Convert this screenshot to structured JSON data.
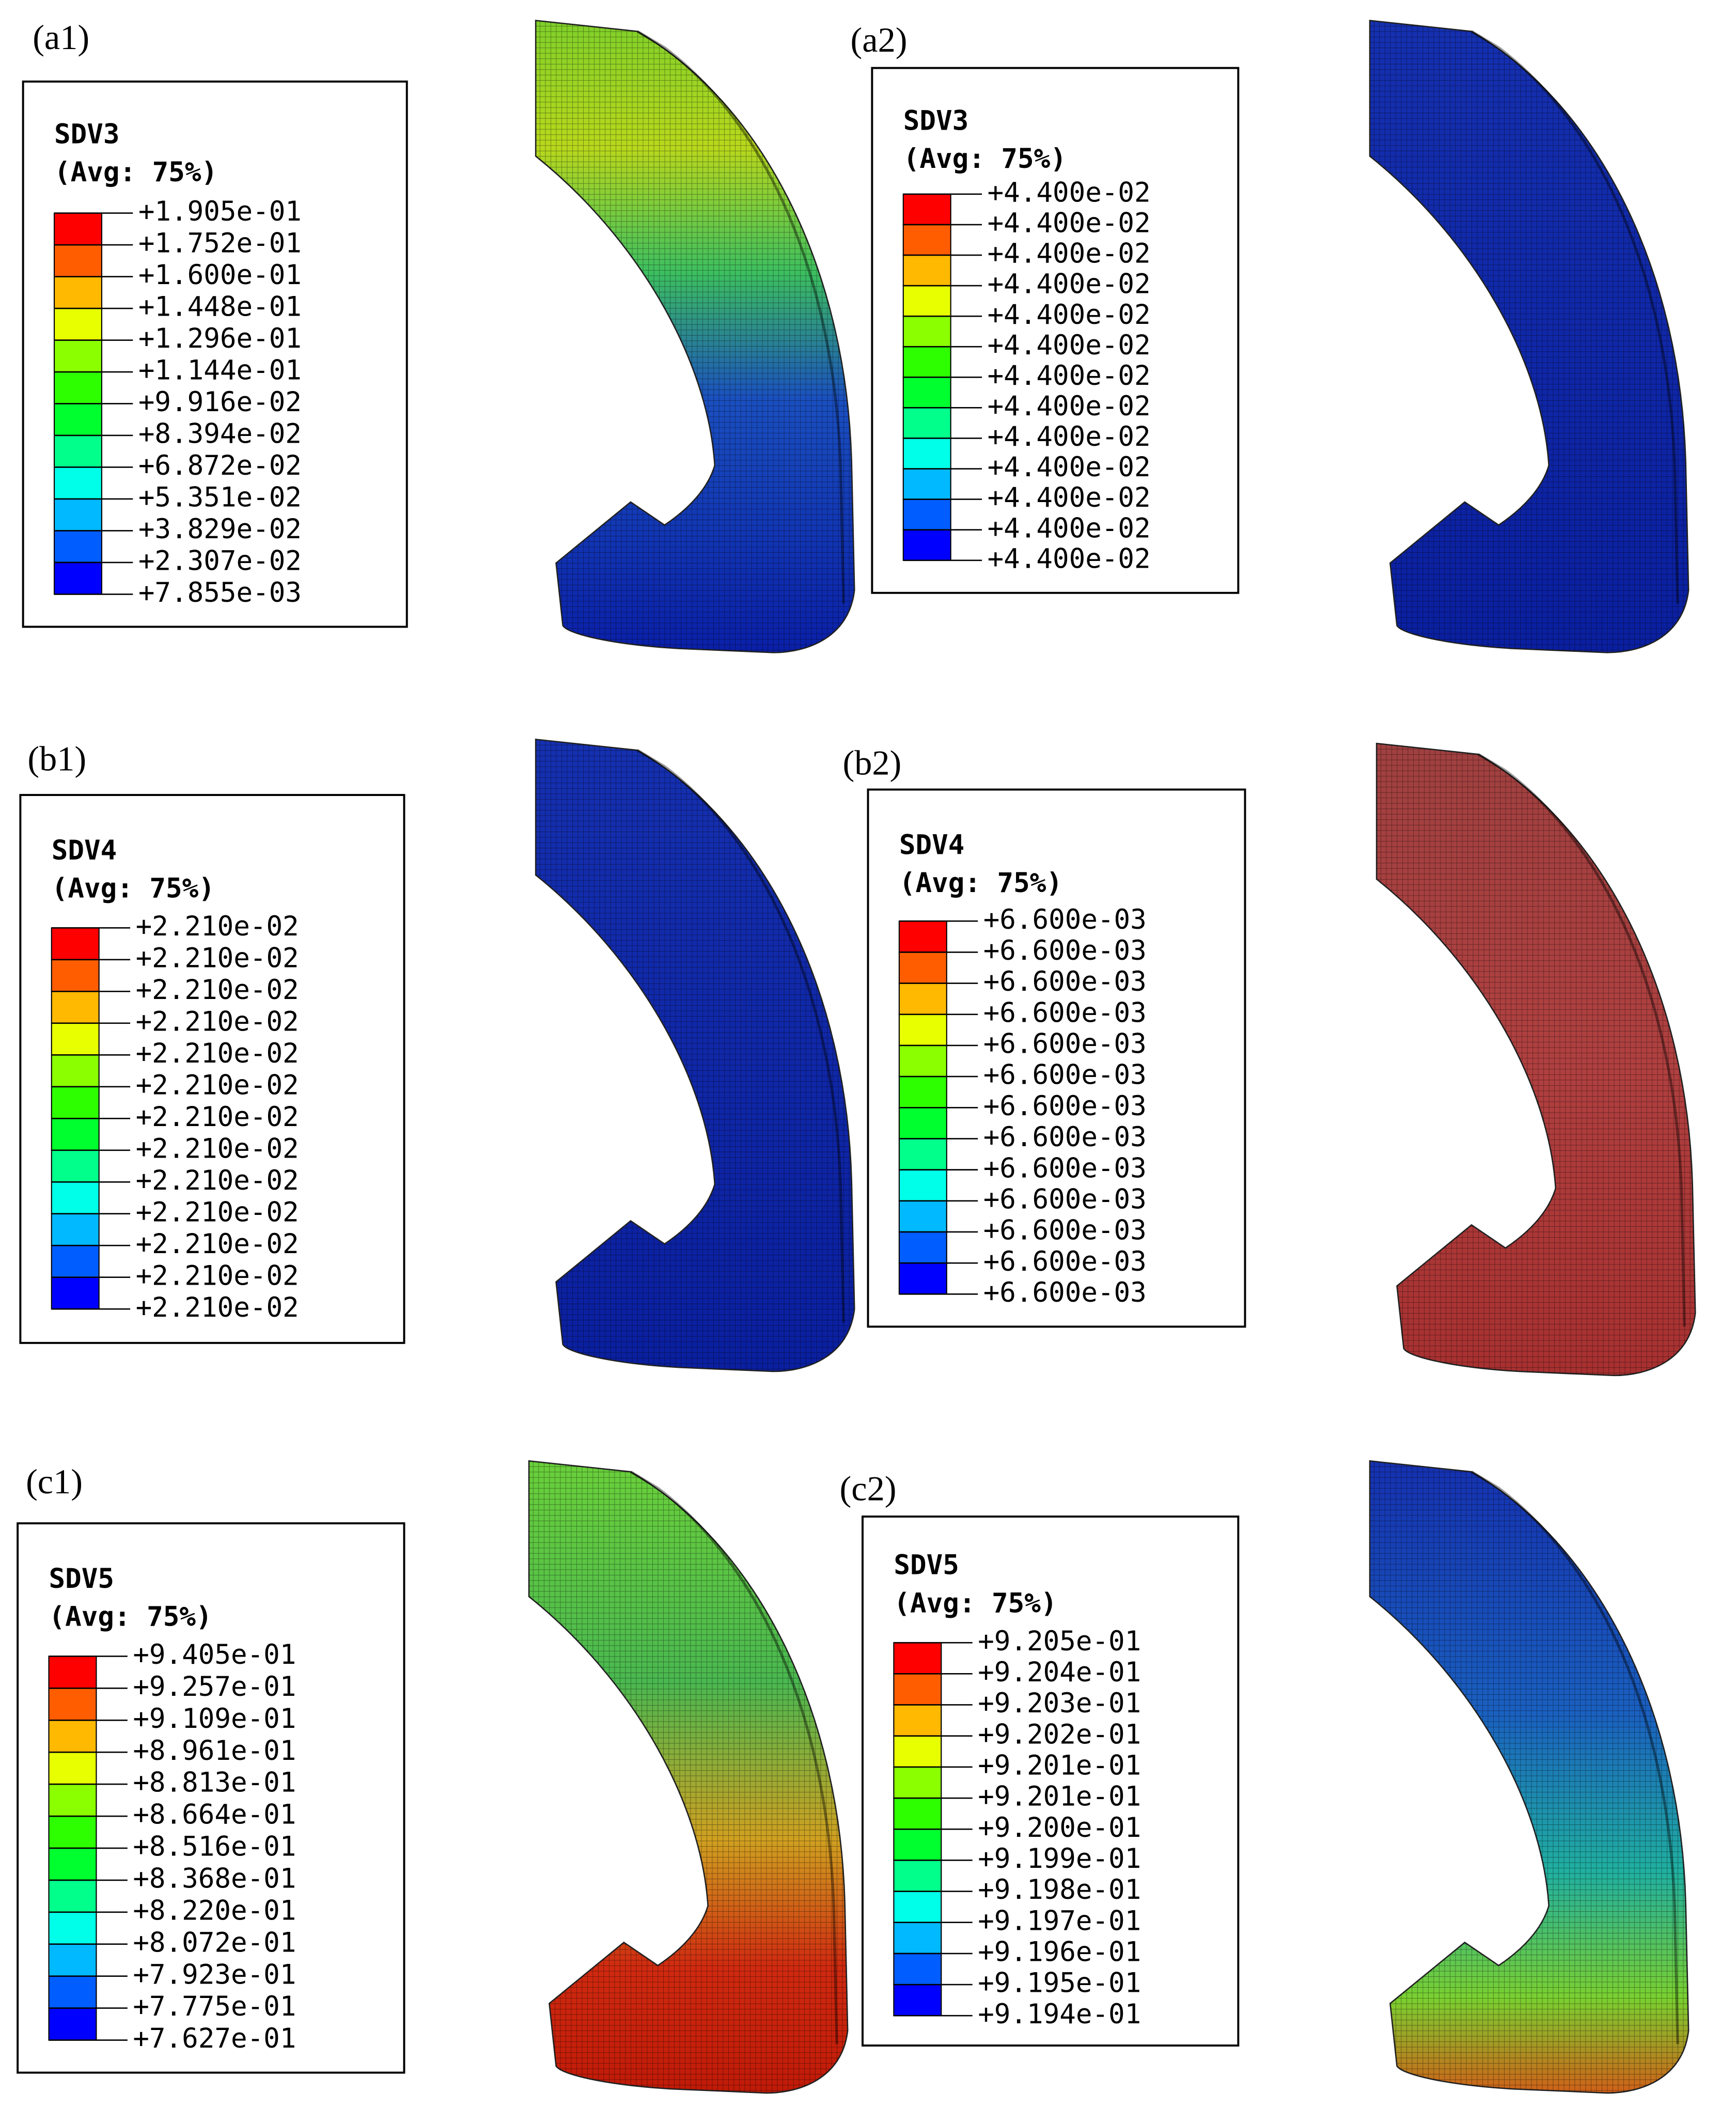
{
  "panels": [
    {
      "label": "(a1)",
      "legend": {
        "variable": "SDV3",
        "average": "(Avg: 75%)",
        "values": [
          "+1.905e-01",
          "+1.752e-01",
          "+1.600e-01",
          "+1.448e-01",
          "+1.296e-01",
          "+1.144e-01",
          "+9.916e-02",
          "+8.394e-02",
          "+6.872e-02",
          "+5.351e-02",
          "+3.829e-02",
          "+2.307e-02",
          "+7.855e-03"
        ]
      }
    },
    {
      "label": "(a2)",
      "legend": {
        "variable": "SDV3",
        "average": "(Avg: 75%)",
        "values": [
          "+4.400e-02",
          "+4.400e-02",
          "+4.400e-02",
          "+4.400e-02",
          "+4.400e-02",
          "+4.400e-02",
          "+4.400e-02",
          "+4.400e-02",
          "+4.400e-02",
          "+4.400e-02",
          "+4.400e-02",
          "+4.400e-02",
          "+4.400e-02"
        ]
      }
    },
    {
      "label": "(b1)",
      "legend": {
        "variable": "SDV4",
        "average": "(Avg: 75%)",
        "values": [
          "+2.210e-02",
          "+2.210e-02",
          "+2.210e-02",
          "+2.210e-02",
          "+2.210e-02",
          "+2.210e-02",
          "+2.210e-02",
          "+2.210e-02",
          "+2.210e-02",
          "+2.210e-02",
          "+2.210e-02",
          "+2.210e-02",
          "+2.210e-02"
        ]
      }
    },
    {
      "label": "(b2)",
      "legend": {
        "variable": "SDV4",
        "average": "(Avg: 75%)",
        "values": [
          "+6.600e-03",
          "+6.600e-03",
          "+6.600e-03",
          "+6.600e-03",
          "+6.600e-03",
          "+6.600e-03",
          "+6.600e-03",
          "+6.600e-03",
          "+6.600e-03",
          "+6.600e-03",
          "+6.600e-03",
          "+6.600e-03",
          "+6.600e-03"
        ]
      }
    },
    {
      "label": "(c1)",
      "legend": {
        "variable": "SDV5",
        "average": "(Avg: 75%)",
        "values": [
          "+9.405e-01",
          "+9.257e-01",
          "+9.109e-01",
          "+8.961e-01",
          "+8.813e-01",
          "+8.664e-01",
          "+8.516e-01",
          "+8.368e-01",
          "+8.220e-01",
          "+8.072e-01",
          "+7.923e-01",
          "+7.775e-01",
          "+7.627e-01"
        ]
      }
    },
    {
      "label": "(c2)",
      "legend": {
        "variable": "SDV5",
        "average": "(Avg: 75%)",
        "values": [
          "+9.205e-01",
          "+9.204e-01",
          "+9.203e-01",
          "+9.202e-01",
          "+9.201e-01",
          "+9.201e-01",
          "+9.200e-01",
          "+9.199e-01",
          "+9.198e-01",
          "+9.197e-01",
          "+9.196e-01",
          "+9.195e-01",
          "+9.194e-01"
        ]
      }
    }
  ]
}
